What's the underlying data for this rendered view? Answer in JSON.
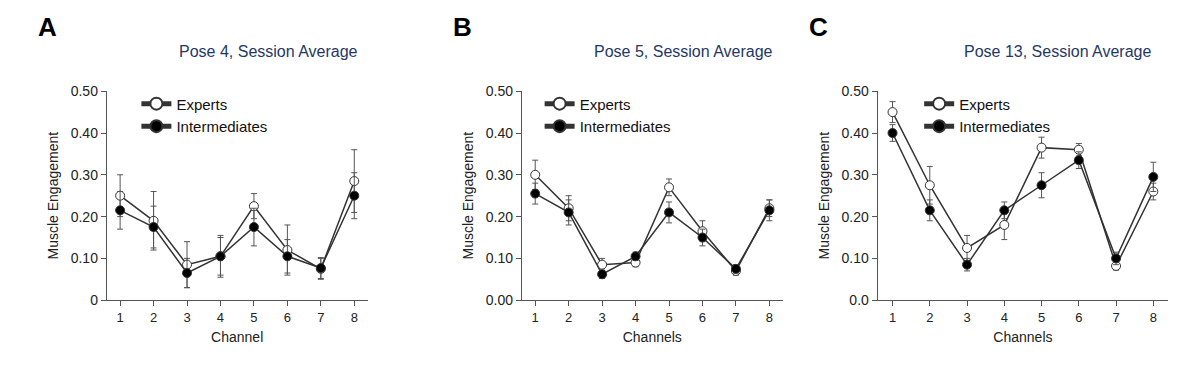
{
  "chart_data": [
    {
      "type": "line",
      "title": "Pose 4, Session Average",
      "annotations": [
        "A"
      ],
      "xlabel": "Channel",
      "ylabel": "Muscle Engagement",
      "xlim": [
        0.6,
        8.4
      ],
      "xticks": [
        1,
        2,
        3,
        4,
        5,
        6,
        7,
        8
      ],
      "ylim": [
        0,
        0.5
      ],
      "yticks": [
        0,
        {
          "value": 0.1,
          "label": "0.10"
        },
        {
          "value": 0.2,
          "label": "0.20"
        },
        {
          "value": 0.3,
          "label": "0.30"
        },
        {
          "value": 0.4,
          "label": "0.40"
        },
        {
          "value": 0.5,
          "label": "0.50"
        }
      ],
      "grid": false,
      "legend": "top left",
      "x": [
        1,
        2,
        3,
        4,
        5,
        6,
        7,
        8
      ],
      "series": [
        {
          "name": "Experts",
          "color": "#ffffff",
          "marker": "circle",
          "values": [
            0.25,
            0.19,
            0.085,
            0.105,
            0.225,
            0.12,
            0.075,
            0.285
          ],
          "error": [
            0.05,
            0.07,
            0.055,
            0.05,
            0.03,
            0.06,
            0.025,
            0.075
          ]
        },
        {
          "name": "Intermediates",
          "color": "#000000",
          "marker": "circle",
          "values": [
            0.215,
            0.175,
            0.065,
            0.105,
            0.175,
            0.105,
            0.077,
            0.25
          ],
          "error": [
            0.045,
            0.05,
            0.035,
            0.045,
            0.045,
            0.04,
            0.025,
            0.055
          ]
        }
      ]
    },
    {
      "type": "line",
      "title": "Pose 5, Session Average",
      "annotations": [
        "B"
      ],
      "xlabel": "Channels",
      "ylabel": "Muscle Engagement",
      "xlim": [
        0.6,
        8.4
      ],
      "xticks": [
        1,
        2,
        3,
        4,
        5,
        6,
        7,
        8
      ],
      "ylim": [
        0,
        0.5
      ],
      "yticks": [
        {
          "value": 0,
          "label": "0.00"
        },
        {
          "value": 0.1,
          "label": "0.10"
        },
        {
          "value": 0.2,
          "label": "0.20"
        },
        {
          "value": 0.3,
          "label": "0.30"
        },
        {
          "value": 0.4,
          "label": "0.40"
        },
        {
          "value": 0.5,
          "label": "0.50"
        }
      ],
      "grid": false,
      "legend": "top left",
      "x": [
        1,
        2,
        3,
        4,
        5,
        6,
        7,
        8
      ],
      "series": [
        {
          "name": "Experts",
          "color": "#ffffff",
          "marker": "circle",
          "values": [
            0.3,
            0.22,
            0.085,
            0.09,
            0.27,
            0.165,
            0.07,
            0.22
          ],
          "error": [
            0.035,
            0.03,
            0.015,
            0.01,
            0.02,
            0.025,
            0.01,
            0.02
          ]
        },
        {
          "name": "Intermediates",
          "color": "#000000",
          "marker": "circle",
          "values": [
            0.255,
            0.21,
            0.062,
            0.105,
            0.21,
            0.15,
            0.075,
            0.215
          ],
          "error": [
            0.025,
            0.03,
            0.01,
            0.01,
            0.025,
            0.02,
            0.01,
            0.025
          ]
        }
      ]
    },
    {
      "type": "line",
      "title": "Pose 13, Session Average",
      "annotations": [
        "C"
      ],
      "xlabel": "Channels",
      "ylabel": "Muscle Engagement",
      "xlim": [
        0.6,
        8.4
      ],
      "xticks": [
        1,
        2,
        3,
        4,
        5,
        6,
        7,
        8
      ],
      "ylim": [
        0,
        0.5
      ],
      "yticks": [
        {
          "value": 0,
          "label": "0.0"
        },
        {
          "value": 0.1,
          "label": "0.10"
        },
        {
          "value": 0.2,
          "label": "0.20"
        },
        {
          "value": 0.3,
          "label": "0.30"
        },
        {
          "value": 0.4,
          "label": "0.40"
        },
        {
          "value": 0.5,
          "label": "0.50"
        }
      ],
      "grid": false,
      "legend": "top left",
      "x": [
        1,
        2,
        3,
        4,
        5,
        6,
        7,
        8
      ],
      "series": [
        {
          "name": "Experts",
          "color": "#ffffff",
          "marker": "circle",
          "values": [
            0.45,
            0.275,
            0.125,
            0.18,
            0.365,
            0.36,
            0.082,
            0.26
          ],
          "error": [
            0.025,
            0.045,
            0.03,
            0.035,
            0.025,
            0.015,
            0.01,
            0.02
          ]
        },
        {
          "name": "Intermediates",
          "color": "#000000",
          "marker": "circle",
          "values": [
            0.4,
            0.215,
            0.085,
            0.215,
            0.275,
            0.335,
            0.1,
            0.295
          ],
          "error": [
            0.02,
            0.025,
            0.015,
            0.02,
            0.03,
            0.02,
            0.015,
            0.035
          ]
        }
      ]
    }
  ]
}
